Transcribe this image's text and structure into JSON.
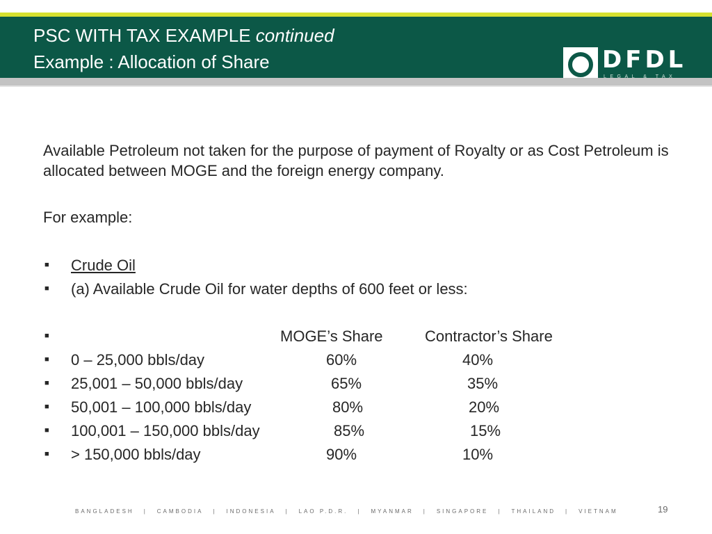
{
  "header": {
    "title_line1": "PSC WITH TAX EXAMPLE",
    "title_line1_italic": "continued",
    "title_line2": "Example :  Allocation of Share",
    "bg_color": "#0c5847",
    "accent_color": "#d6e030"
  },
  "logo": {
    "name": "DFDL",
    "tagline": "LEGAL & TAX"
  },
  "body": {
    "paragraph": "Available Petroleum not taken for the purpose of payment of Royalty or as Cost Petroleum is allocated between MOGE and the foreign energy company.",
    "for_example": "For example:",
    "crude_oil": "Crude Oil",
    "condition": " (a) Available Crude Oil for water depths of 600 feet or less:"
  },
  "table": {
    "header_moge": "MOGE’s Share",
    "header_contractor": "Contractor’s Share",
    "rows": [
      {
        "range": "0 – 25,000 bbls/day",
        "moge": "60%",
        "contractor": "40%"
      },
      {
        "range": "25,001 – 50,000 bbls/day",
        "moge": "65%",
        "contractor": "35%"
      },
      {
        "range": "50,001 – 100,000 bbls/day",
        "moge": "80%",
        "contractor": "20%"
      },
      {
        "range": "100,001 – 150,000 bbls/day",
        "moge": "85%",
        "contractor": "15%"
      },
      {
        "range": "> 150,000 bbls/day",
        "moge": "90%",
        "contractor": "10%"
      }
    ]
  },
  "footer": {
    "countries": [
      "BANGLADESH",
      "CAMBODIA",
      "INDONESIA",
      "LAO P.D.R.",
      "MYANMAR",
      "SINGAPORE",
      "THAILAND",
      "VIETNAM"
    ],
    "separator": "|",
    "page_number": "19"
  }
}
